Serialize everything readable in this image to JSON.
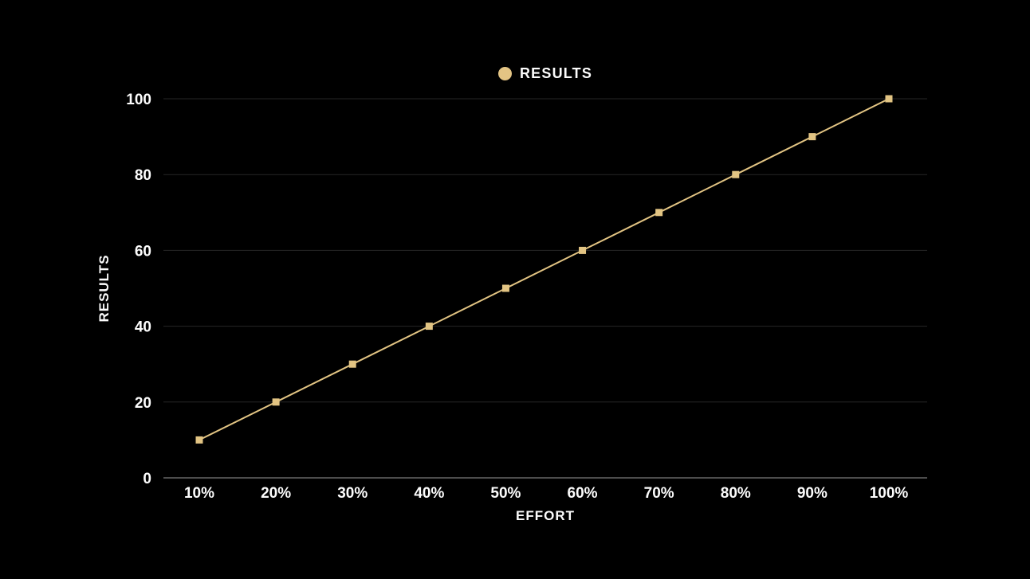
{
  "page": {
    "background": "#000000"
  },
  "legend": {
    "label": "RESULTS",
    "marker_color": "#e3c484"
  },
  "chart_data": {
    "type": "line",
    "title": "",
    "categories": [
      "10%",
      "20%",
      "30%",
      "40%",
      "50%",
      "60%",
      "70%",
      "80%",
      "90%",
      "100%"
    ],
    "series": [
      {
        "name": "RESULTS",
        "values": [
          10,
          20,
          30,
          40,
          50,
          60,
          70,
          80,
          90,
          100
        ],
        "color": "#e2c483",
        "marker": "square"
      }
    ],
    "xlabel": "EFFORT",
    "ylabel": "RESULTS",
    "ylim": [
      0,
      100
    ],
    "yticks": [
      0,
      20,
      40,
      60,
      80,
      100
    ],
    "grid": "horizontal",
    "legend_position": "top-center",
    "colors": {
      "background": "#000000",
      "text": "#fcfcfc",
      "gridline": "#262626",
      "axis_line": "#9a9a9a",
      "series": "#e2c483"
    }
  }
}
